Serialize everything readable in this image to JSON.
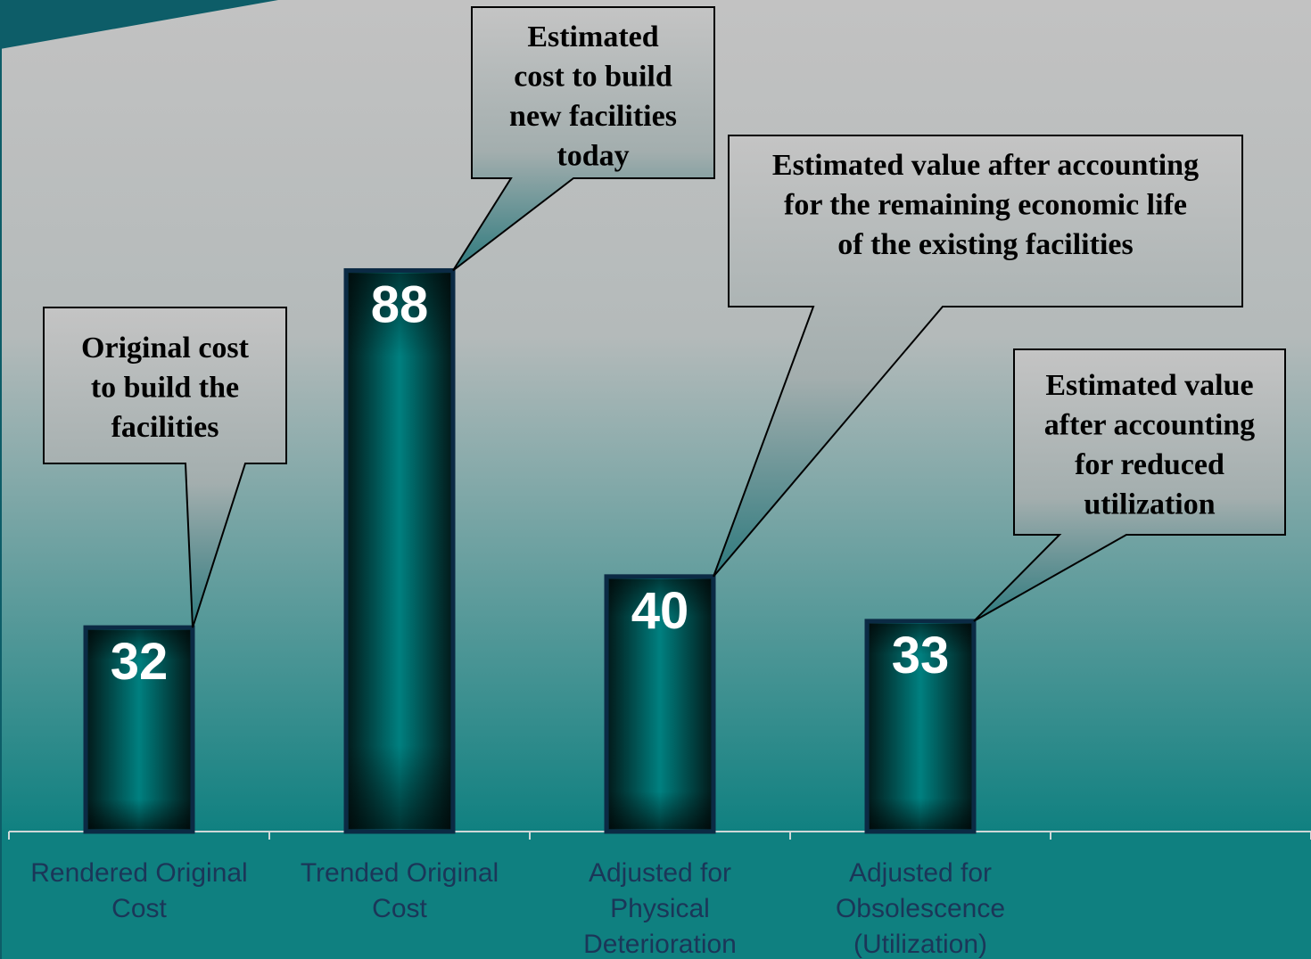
{
  "chart_data": {
    "type": "bar",
    "categories": [
      "Rendered Original Cost",
      "Trended Original Cost",
      "Adjusted for Physical Deterioration",
      "Adjusted for Obsolescence (Utilization)",
      null
    ],
    "values": [
      32,
      88,
      40,
      33,
      null
    ],
    "ylim": [
      0,
      130
    ],
    "annotations": [
      [
        "Original cost",
        "to build the",
        "facilities"
      ],
      [
        "Estimated",
        "cost to build",
        "new facilities",
        "today"
      ],
      [
        "Estimated  value after accounting",
        "for the remaining economic life",
        "of the existing facilities"
      ],
      [
        "Estimated value",
        "after accounting",
        "for reduced",
        "utilization"
      ]
    ]
  }
}
